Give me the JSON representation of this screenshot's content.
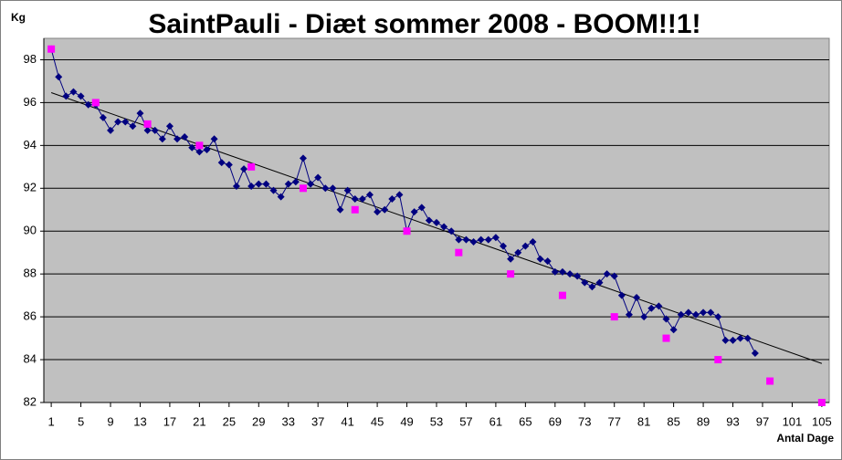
{
  "chart_data": {
    "type": "scatter",
    "title": "SaintPauli - Diæt sommer 2008 - BOOM!!1!",
    "y_label": "Kg",
    "x_label": "Antal Dage",
    "xlim": [
      0,
      106
    ],
    "xticks": [
      1,
      5,
      9,
      13,
      17,
      21,
      25,
      29,
      33,
      37,
      41,
      45,
      49,
      53,
      57,
      61,
      65,
      69,
      73,
      77,
      81,
      85,
      89,
      93,
      97,
      101,
      105
    ],
    "ylim": [
      82,
      99
    ],
    "yticks": [
      82,
      84,
      86,
      88,
      90,
      92,
      94,
      96,
      98
    ],
    "grid": true,
    "trendline": true,
    "series": [
      {
        "color": "#000080",
        "marker": "diamond",
        "line": true,
        "x": [
          1,
          2,
          3,
          4,
          5,
          6,
          7,
          8,
          9,
          10,
          11,
          12,
          13,
          14,
          15,
          16,
          17,
          18,
          19,
          20,
          21,
          22,
          23,
          24,
          25,
          26,
          27,
          28,
          29,
          30,
          31,
          32,
          33,
          34,
          35,
          36,
          37,
          38,
          39,
          40,
          41,
          42,
          43,
          44,
          45,
          46,
          47,
          48,
          49,
          50,
          51,
          52,
          53,
          54,
          55,
          56,
          57,
          58,
          59,
          60,
          61,
          62,
          63,
          64,
          65,
          66,
          67,
          68,
          69,
          70,
          71,
          72,
          73,
          74,
          75,
          76,
          77,
          78,
          79,
          80,
          81,
          82,
          83,
          84,
          85,
          86,
          87,
          88,
          89,
          90,
          91,
          92,
          93,
          94,
          95,
          96
        ],
        "values": [
          98.5,
          97.2,
          96.3,
          96.5,
          96.3,
          95.9,
          95.9,
          95.3,
          94.7,
          95.1,
          95.1,
          94.9,
          95.5,
          94.7,
          94.7,
          94.3,
          94.9,
          94.3,
          94.4,
          93.9,
          93.7,
          93.8,
          94.3,
          93.2,
          93.1,
          92.1,
          92.9,
          92.1,
          92.2,
          92.2,
          91.9,
          91.6,
          92.2,
          92.3,
          93.4,
          92.2,
          92.5,
          92.0,
          92.0,
          91.0,
          91.9,
          91.5,
          91.5,
          91.7,
          90.9,
          91.0,
          91.5,
          91.7,
          90.0,
          90.9,
          91.1,
          90.5,
          90.4,
          90.2,
          90.0,
          89.6,
          89.6,
          89.5,
          89.6,
          89.6,
          89.7,
          89.3,
          88.7,
          89.0,
          89.3,
          89.5,
          88.7,
          88.6,
          88.1,
          88.1,
          88.0,
          87.9,
          87.6,
          87.4,
          87.6,
          88.0,
          87.9,
          87.0,
          86.1,
          86.9,
          86.0,
          86.4,
          86.5,
          85.9,
          85.4,
          86.1,
          86.2,
          86.1,
          86.2,
          86.2,
          86.0,
          84.9,
          84.9,
          85.0,
          85.0,
          84.3
        ]
      },
      {
        "color": "#ff00ff",
        "marker": "square",
        "line": false,
        "x": [
          1,
          7,
          14,
          21,
          28,
          35,
          42,
          49,
          56,
          63,
          70,
          77,
          84,
          91,
          98,
          105
        ],
        "values": [
          98.5,
          96,
          95,
          94,
          93,
          92,
          91,
          90,
          89,
          88,
          87,
          86,
          85,
          84,
          83,
          82
        ]
      }
    ]
  }
}
